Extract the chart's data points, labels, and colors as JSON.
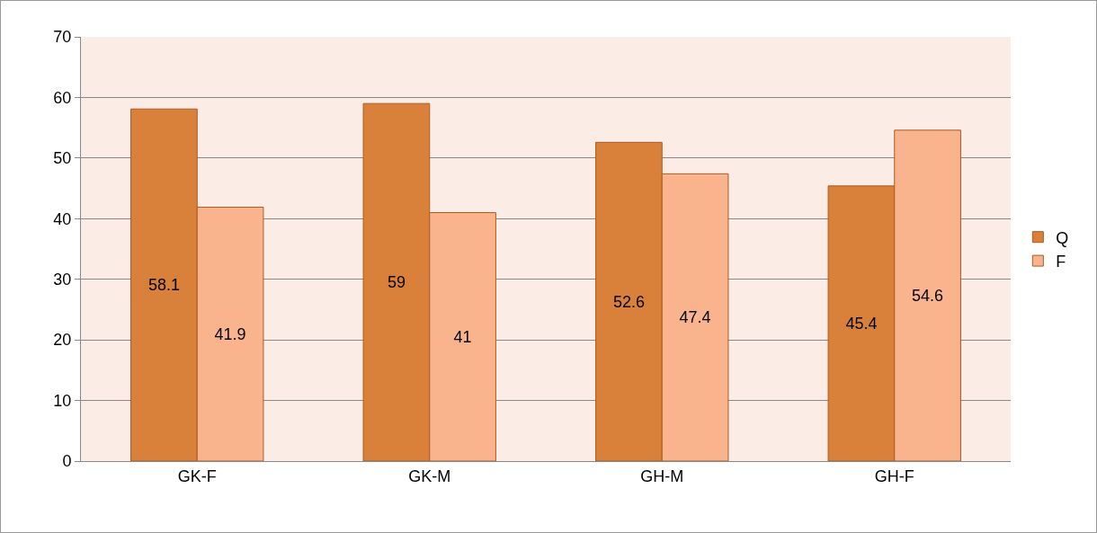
{
  "chart_data": {
    "type": "bar",
    "categories": [
      "GK-F",
      "GK-M",
      "GH-M",
      "GH-F"
    ],
    "series": [
      {
        "name": "Q",
        "color": "#d9813b",
        "values": [
          58.1,
          59,
          52.6,
          45.4
        ]
      },
      {
        "name": "F",
        "color": "#f9b48e",
        "values": [
          41.9,
          41,
          47.4,
          54.6
        ]
      }
    ],
    "ylim": [
      0,
      70
    ],
    "yticks": [
      0,
      10,
      20,
      30,
      40,
      50,
      60,
      70
    ],
    "grid": "y",
    "legend": "right",
    "data_labels": true
  }
}
